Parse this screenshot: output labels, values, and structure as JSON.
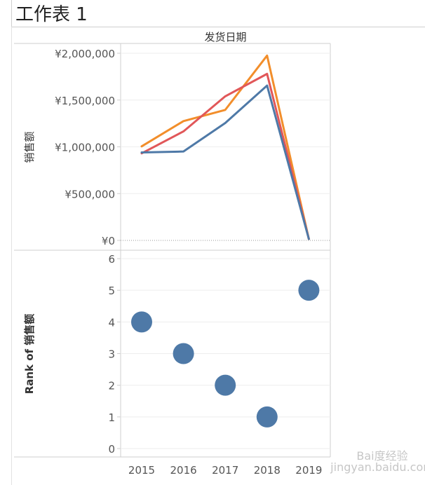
{
  "sheet": {
    "title": "工作表 1"
  },
  "colors": {
    "series_blue": "#4e79a7",
    "series_red": "#e15759",
    "series_orange": "#f28e2b",
    "scatter": "#4e79a7"
  },
  "chart_data": [
    {
      "type": "line",
      "title": "发货日期",
      "xlabel": "",
      "ylabel": "销售额",
      "categories": [
        "2015",
        "2016",
        "2017",
        "2018",
        "2019"
      ],
      "ylim": [
        0,
        2000000
      ],
      "yticks": [
        "¥2,000,000",
        "¥1,500,000",
        "¥1,000,000",
        "¥500,000",
        "¥0"
      ],
      "ytick_values": [
        2000000,
        1500000,
        1000000,
        500000,
        0
      ],
      "series": [
        {
          "color": "#f28e2b",
          "values": [
            1005000,
            1275000,
            1395000,
            1975000,
            15000
          ]
        },
        {
          "color": "#e15759",
          "values": [
            930000,
            1165000,
            1540000,
            1780000,
            15000
          ]
        },
        {
          "color": "#4e79a7",
          "values": [
            940000,
            950000,
            1255000,
            1655000,
            15000
          ]
        }
      ],
      "grid": true
    },
    {
      "type": "scatter",
      "xlabel": "",
      "ylabel": "Rank of 销售额",
      "categories": [
        "2015",
        "2016",
        "2017",
        "2018",
        "2019"
      ],
      "values": [
        4,
        3,
        2,
        1,
        5
      ],
      "ylim": [
        0,
        6
      ],
      "yticks": [
        "6",
        "5",
        "4",
        "3",
        "2",
        "1",
        "0"
      ],
      "ytick_values": [
        6,
        5,
        4,
        3,
        2,
        1,
        0
      ],
      "xticks": [
        "2015",
        "2016",
        "2017",
        "2018",
        "2019"
      ],
      "grid": true
    }
  ],
  "watermark": {
    "text": "Bai度经验",
    "url": "jingyan.baidu.com"
  }
}
